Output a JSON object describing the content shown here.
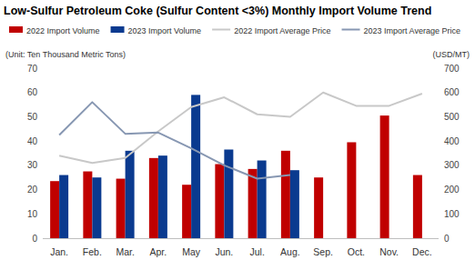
{
  "chart_data": {
    "type": "bar",
    "title": "Low-Sulfur Petroleum Coke (Sulfur Content <3%) Monthly Import Volume Trend",
    "y_label": "(Unit: Ten Thousand Metric Tons)",
    "y2_label": "(USD/MT)",
    "categories": [
      "Jan.",
      "Feb.",
      "Mar.",
      "Apr.",
      "May",
      "Jun.",
      "Jul.",
      "Aug.",
      "Sep.",
      "Oct.",
      "Nov.",
      "Dec."
    ],
    "series": [
      {
        "name": "2022 Import Volume",
        "type": "bar",
        "color": "#c00000",
        "values": [
          23.5,
          27.5,
          24.5,
          33,
          22,
          30.5,
          28.5,
          36,
          25,
          39.5,
          50.5,
          26
        ]
      },
      {
        "name": "2023 Import Volume",
        "type": "bar",
        "color": "#0a3a8f",
        "values": [
          26,
          25,
          36,
          34,
          59,
          36.5,
          32,
          28,
          null,
          null,
          null,
          null
        ]
      },
      {
        "name": "2022 Import Average Price",
        "type": "line",
        "axis": "y2",
        "color": "#c8c8c8",
        "values": [
          340,
          310,
          330,
          440,
          540,
          580,
          510,
          500,
          600,
          545,
          545,
          595
        ]
      },
      {
        "name": "2023 Import Average Price",
        "type": "line",
        "axis": "y2",
        "color": "#8797b2",
        "values": [
          425,
          560,
          430,
          435,
          370,
          300,
          245,
          260,
          null,
          null,
          null,
          null
        ]
      }
    ],
    "ylim": [
      0,
      70
    ],
    "yticks": [
      0,
      10,
      20,
      30,
      40,
      50,
      60,
      70
    ],
    "y2lim": [
      0,
      700
    ],
    "y2ticks": [
      0,
      100,
      200,
      300,
      400,
      500,
      600,
      700
    ],
    "grid": false,
    "legend": "top"
  }
}
